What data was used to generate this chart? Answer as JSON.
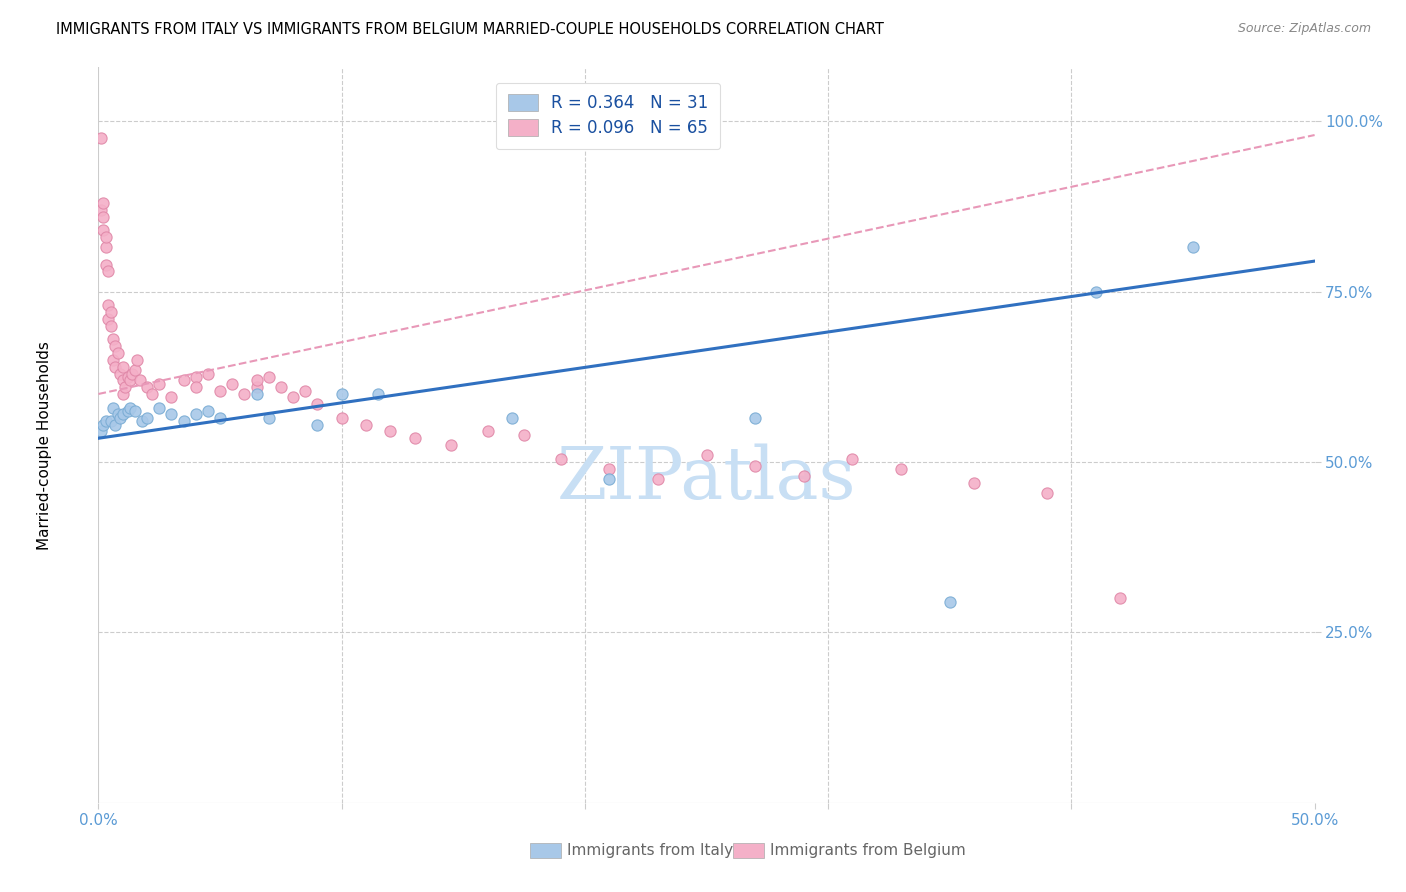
{
  "title": "IMMIGRANTS FROM ITALY VS IMMIGRANTS FROM BELGIUM MARRIED-COUPLE HOUSEHOLDS CORRELATION CHART",
  "source": "Source: ZipAtlas.com",
  "ylabel": "Married-couple Households",
  "xlim": [
    0.0,
    0.5
  ],
  "ylim": [
    0.0,
    1.08
  ],
  "italy_x": [
    0.001,
    0.002,
    0.003,
    0.005,
    0.006,
    0.007,
    0.008,
    0.009,
    0.01,
    0.012,
    0.013,
    0.015,
    0.018,
    0.02,
    0.025,
    0.03,
    0.035,
    0.04,
    0.045,
    0.05,
    0.065,
    0.07,
    0.09,
    0.1,
    0.115,
    0.17,
    0.21,
    0.27,
    0.35,
    0.41,
    0.45
  ],
  "italy_y": [
    0.545,
    0.555,
    0.56,
    0.56,
    0.58,
    0.555,
    0.57,
    0.565,
    0.57,
    0.575,
    0.58,
    0.575,
    0.56,
    0.565,
    0.58,
    0.57,
    0.56,
    0.57,
    0.575,
    0.565,
    0.6,
    0.565,
    0.555,
    0.6,
    0.6,
    0.565,
    0.475,
    0.565,
    0.295,
    0.75,
    0.815
  ],
  "belgium_x": [
    0.001,
    0.001,
    0.002,
    0.002,
    0.002,
    0.003,
    0.003,
    0.003,
    0.004,
    0.004,
    0.004,
    0.005,
    0.005,
    0.006,
    0.006,
    0.007,
    0.007,
    0.008,
    0.009,
    0.01,
    0.01,
    0.01,
    0.011,
    0.012,
    0.013,
    0.014,
    0.015,
    0.016,
    0.017,
    0.02,
    0.022,
    0.025,
    0.03,
    0.035,
    0.04,
    0.04,
    0.045,
    0.05,
    0.055,
    0.06,
    0.065,
    0.065,
    0.07,
    0.075,
    0.08,
    0.085,
    0.09,
    0.1,
    0.11,
    0.12,
    0.13,
    0.145,
    0.16,
    0.175,
    0.19,
    0.21,
    0.23,
    0.25,
    0.27,
    0.29,
    0.31,
    0.33,
    0.36,
    0.39,
    0.42
  ],
  "belgium_y": [
    0.975,
    0.87,
    0.86,
    0.88,
    0.84,
    0.815,
    0.83,
    0.79,
    0.73,
    0.71,
    0.78,
    0.7,
    0.72,
    0.65,
    0.68,
    0.67,
    0.64,
    0.66,
    0.63,
    0.62,
    0.6,
    0.64,
    0.61,
    0.625,
    0.62,
    0.63,
    0.635,
    0.65,
    0.62,
    0.61,
    0.6,
    0.615,
    0.595,
    0.62,
    0.625,
    0.61,
    0.63,
    0.605,
    0.615,
    0.6,
    0.61,
    0.62,
    0.625,
    0.61,
    0.595,
    0.605,
    0.585,
    0.565,
    0.555,
    0.545,
    0.535,
    0.525,
    0.545,
    0.54,
    0.505,
    0.49,
    0.475,
    0.51,
    0.495,
    0.48,
    0.505,
    0.49,
    0.47,
    0.455,
    0.3
  ],
  "italy_line_x": [
    0.0,
    0.5
  ],
  "italy_line_y": [
    0.535,
    0.795
  ],
  "belgium_line_x": [
    0.0,
    0.5
  ],
  "belgium_line_y": [
    0.6,
    0.98
  ],
  "legend1_text": "R = 0.364   N = 31",
  "legend2_text": "R = 0.096   N = 65",
  "scatter_italy_face": "#a8c8e8",
  "scatter_italy_edge": "#7aacd4",
  "scatter_belgium_face": "#f4b0c8",
  "scatter_belgium_edge": "#e088a8",
  "line_italy_color": "#3070c0",
  "line_belgium_color": "#e898b8",
  "legend_italy_face": "#a8c8e8",
  "legend_belgium_face": "#f4b0c8",
  "watermark_color": "#c8dff4",
  "grid_color": "#cccccc",
  "tick_color_right": "#5b9bd5",
  "title_fontsize": 10.5,
  "source_fontsize": 9,
  "tick_fontsize": 11,
  "legend_fontsize": 12
}
